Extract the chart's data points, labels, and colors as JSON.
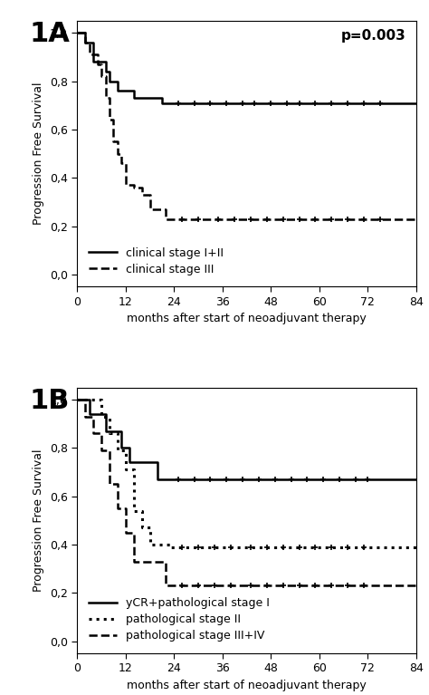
{
  "fig_width": 4.74,
  "fig_height": 7.67,
  "dpi": 100,
  "background_color": "#ffffff",
  "plot1A": {
    "label": "1A",
    "pvalue": "p=0.003",
    "ylabel": "Progression Free Survival",
    "xlabel": "months after start of neoadjuvant therapy",
    "xlim": [
      0,
      84
    ],
    "ylim": [
      -0.05,
      1.05
    ],
    "xticks": [
      0,
      12,
      24,
      36,
      48,
      60,
      72,
      84
    ],
    "yticks": [
      0.0,
      0.2,
      0.4,
      0.6,
      0.8,
      1.0
    ],
    "ytick_labels": [
      "0,0",
      "0,2",
      "0,4",
      "0,6",
      "0,8",
      "1,0"
    ],
    "series": [
      {
        "label": "clinical stage I+II",
        "linestyle": "solid",
        "color": "#000000",
        "linewidth": 1.8,
        "step_x": [
          0,
          1,
          2,
          4,
          6,
          7,
          8,
          10,
          12,
          14,
          16,
          18,
          21,
          23
        ],
        "step_y": [
          1.0,
          1.0,
          0.96,
          0.88,
          0.88,
          0.84,
          0.8,
          0.76,
          0.76,
          0.73,
          0.73,
          0.73,
          0.71,
          0.71
        ],
        "censor_x": [
          25,
          29,
          33,
          37,
          41,
          44,
          48,
          52,
          55,
          59,
          63,
          67,
          71,
          75
        ],
        "censor_y": [
          0.71,
          0.71,
          0.71,
          0.71,
          0.71,
          0.71,
          0.71,
          0.71,
          0.71,
          0.71,
          0.71,
          0.71,
          0.71,
          0.71
        ]
      },
      {
        "label": "clinical stage III",
        "linestyle": "dashed",
        "color": "#000000",
        "linewidth": 1.8,
        "step_x": [
          0,
          2,
          3,
          4,
          5,
          6,
          7,
          8,
          9,
          10,
          11,
          12,
          14,
          16,
          18,
          20,
          22,
          24
        ],
        "step_y": [
          1.0,
          0.96,
          0.91,
          0.91,
          0.87,
          0.82,
          0.73,
          0.64,
          0.55,
          0.5,
          0.46,
          0.37,
          0.36,
          0.33,
          0.27,
          0.27,
          0.23,
          0.23
        ],
        "censor_x": [
          26,
          30,
          35,
          39,
          43,
          47,
          51,
          55,
          59,
          63,
          67,
          71,
          75
        ],
        "censor_y": [
          0.23,
          0.23,
          0.23,
          0.23,
          0.23,
          0.23,
          0.23,
          0.23,
          0.23,
          0.23,
          0.23,
          0.23,
          0.23
        ]
      }
    ],
    "legend_entries": [
      {
        "label": "clinical stage I+II",
        "linestyle": "solid"
      },
      {
        "label": "clinical stage III",
        "linestyle": "dashed"
      }
    ]
  },
  "plot1B": {
    "label": "1B",
    "ylabel": "Progression Free Survival",
    "xlabel": "months after start of neoadjuvant therapy",
    "xlim": [
      0,
      84
    ],
    "ylim": [
      -0.05,
      1.05
    ],
    "xticks": [
      0,
      12,
      24,
      36,
      48,
      60,
      72,
      84
    ],
    "yticks": [
      0.0,
      0.2,
      0.4,
      0.6,
      0.8,
      1.0
    ],
    "ytick_labels": [
      "0,0",
      "0,2",
      "0,4",
      "0,6",
      "0,8",
      "1,0"
    ],
    "series": [
      {
        "label": "yCR+pathological stage I",
        "linestyle": "solid",
        "color": "#000000",
        "linewidth": 1.8,
        "step_x": [
          0,
          3,
          5,
          7,
          9,
          11,
          13,
          16,
          20,
          23
        ],
        "step_y": [
          1.0,
          0.94,
          0.94,
          0.87,
          0.87,
          0.8,
          0.74,
          0.74,
          0.67,
          0.67
        ],
        "censor_x": [
          25,
          29,
          33,
          37,
          41,
          45,
          49,
          53,
          57,
          61,
          65,
          69,
          72
        ],
        "censor_y": [
          0.67,
          0.67,
          0.67,
          0.67,
          0.67,
          0.67,
          0.67,
          0.67,
          0.67,
          0.67,
          0.67,
          0.67,
          0.67
        ]
      },
      {
        "label": "pathological stage II",
        "linestyle": "dotted",
        "color": "#000000",
        "linewidth": 2.2,
        "step_x": [
          0,
          4,
          6,
          8,
          10,
          12,
          14,
          16,
          18,
          21,
          23
        ],
        "step_y": [
          1.0,
          1.0,
          0.93,
          0.86,
          0.79,
          0.71,
          0.54,
          0.47,
          0.4,
          0.4,
          0.39
        ],
        "censor_x": [
          26,
          30,
          34,
          38,
          43,
          47,
          51,
          55,
          59,
          63,
          67,
          71
        ],
        "censor_y": [
          0.39,
          0.39,
          0.39,
          0.39,
          0.39,
          0.39,
          0.39,
          0.39,
          0.39,
          0.39,
          0.39,
          0.39
        ]
      },
      {
        "label": "pathological stage III+IV",
        "linestyle": "dashed",
        "color": "#000000",
        "linewidth": 1.8,
        "step_x": [
          0,
          2,
          4,
          6,
          8,
          10,
          12,
          14,
          17,
          20,
          22,
          24
        ],
        "step_y": [
          1.0,
          0.93,
          0.86,
          0.79,
          0.65,
          0.55,
          0.45,
          0.33,
          0.33,
          0.33,
          0.23,
          0.23
        ],
        "censor_x": [
          26,
          30,
          34,
          38,
          43,
          47,
          51,
          55,
          59,
          63,
          67,
          71
        ],
        "censor_y": [
          0.23,
          0.23,
          0.23,
          0.23,
          0.23,
          0.23,
          0.23,
          0.23,
          0.23,
          0.23,
          0.23,
          0.23
        ]
      }
    ],
    "legend_entries": [
      {
        "label": "yCR+pathological stage I",
        "linestyle": "solid"
      },
      {
        "label": "pathological stage II",
        "linestyle": "dotted"
      },
      {
        "label": "pathological stage III+IV",
        "linestyle": "dashed"
      }
    ]
  },
  "panel_label_fontsize": 22,
  "axis_label_fontsize": 9,
  "tick_fontsize": 9,
  "legend_fontsize": 9,
  "pvalue_fontsize": 11
}
